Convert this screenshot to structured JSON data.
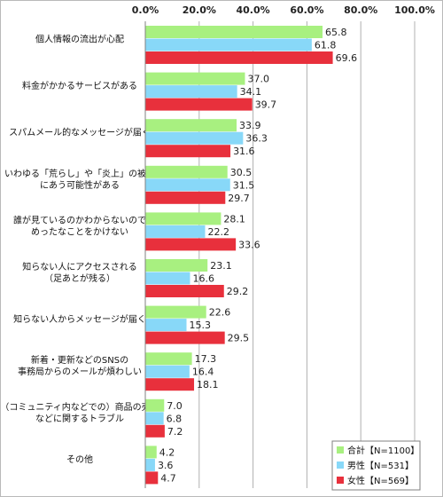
{
  "chart_data": {
    "type": "bar",
    "orientation": "horizontal",
    "xlim": [
      0,
      100
    ],
    "xticks": [
      "0.0%",
      "20.0%",
      "40.0%",
      "60.0%",
      "80.0%",
      "100.0%"
    ],
    "grid": true,
    "legend_position": "bottom-right",
    "categories": [
      [
        "個人情報の流出が心配"
      ],
      [
        "料金がかかるサービスがある"
      ],
      [
        "スパムメール的なメッセージが届く"
      ],
      [
        "いわゆる「荒らし」や「炎上」の被害",
        "にあう可能性がある"
      ],
      [
        "誰が見ているのかわからないので",
        "めったなことをかけない"
      ],
      [
        "知らない人にアクセスされる",
        "（足あとが残る）"
      ],
      [
        "知らない人からメッセージが届く"
      ],
      [
        "新着・更新などのSNSの",
        "事務局からのメールが煩わしい"
      ],
      [
        "（コミュニティ内などでの）商品の売買",
        "などに関するトラブル"
      ],
      [
        "その他"
      ]
    ],
    "series": [
      {
        "name": "合計【N=1100】",
        "color": "#a8f080",
        "values": [
          65.8,
          37.0,
          33.9,
          30.5,
          28.1,
          23.1,
          22.6,
          17.3,
          7.0,
          4.2
        ]
      },
      {
        "name": "男性【N=531】",
        "color": "#88d8f8",
        "values": [
          61.8,
          34.1,
          36.3,
          31.5,
          22.2,
          16.6,
          15.3,
          16.4,
          6.8,
          3.6
        ]
      },
      {
        "name": "女性【N=569】",
        "color": "#e8303c",
        "values": [
          69.6,
          39.7,
          31.6,
          29.7,
          33.6,
          29.2,
          29.5,
          18.1,
          7.2,
          4.7
        ]
      }
    ]
  }
}
